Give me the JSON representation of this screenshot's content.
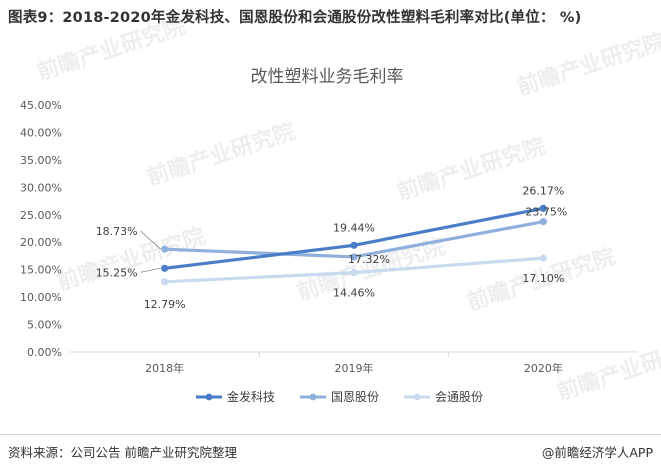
{
  "figure_title": "图表9：2018-2020年金发科技、国恩股份和会通股份改性塑料毛利率对比(单位： %)",
  "source_text": "资料来源：公司公告 前瞻产业研究院整理",
  "credit_text": "@前瞻经济学人APP",
  "watermark_text": "前瞻产业研究院",
  "chart_data": {
    "type": "line",
    "title": "改性塑料业务毛利率",
    "categories": [
      "2018年",
      "2019年",
      "2020年"
    ],
    "ylim": [
      0,
      45
    ],
    "y_ticks": [
      "0.00%",
      "5.00%",
      "10.00%",
      "15.00%",
      "20.00%",
      "25.00%",
      "30.00%",
      "35.00%",
      "40.00%",
      "45.00%"
    ],
    "grid": false,
    "legend_position": "bottom",
    "series": [
      {
        "name": "金发科技",
        "color": "#4a7cc7",
        "values": [
          15.25,
          19.44,
          26.17
        ],
        "labels": [
          "15.25%",
          "19.44%",
          "26.17%"
        ]
      },
      {
        "name": "国恩股份",
        "color": "#8fb0dd",
        "values": [
          18.73,
          17.32,
          23.75
        ],
        "labels": [
          "18.73%",
          "17.32%",
          "23.75%"
        ]
      },
      {
        "name": "会通股份",
        "color": "#c9daf0",
        "values": [
          12.79,
          14.46,
          17.1
        ],
        "labels": [
          "12.79%",
          "14.46%",
          "17.10%"
        ]
      }
    ]
  }
}
